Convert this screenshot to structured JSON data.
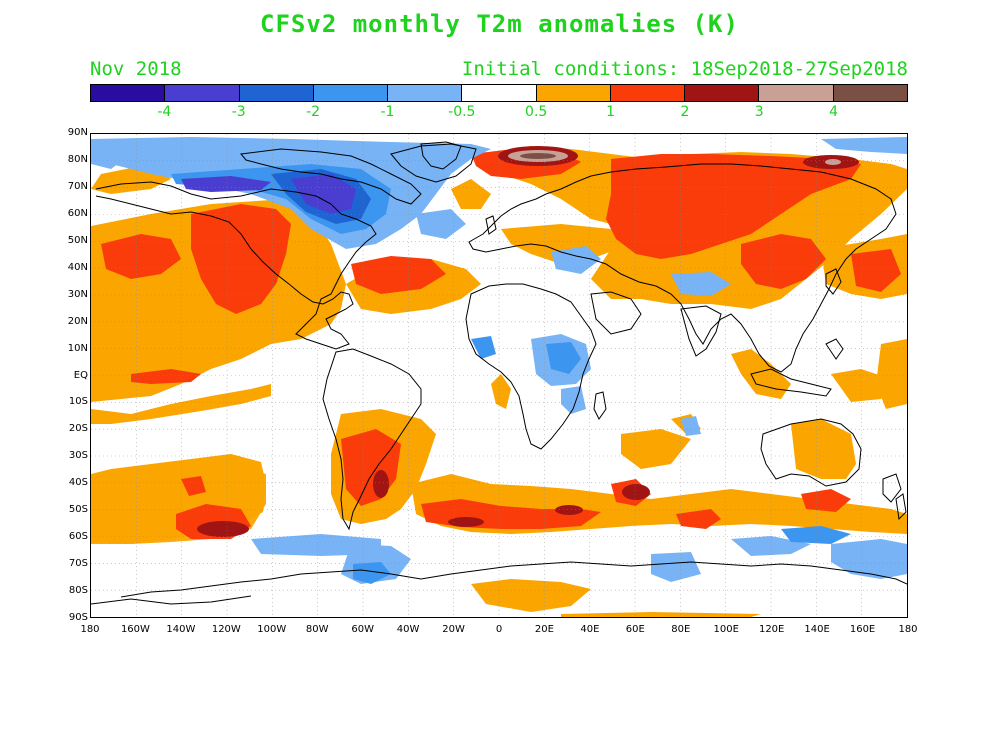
{
  "title": "CFSv2 monthly T2m anomalies (K)",
  "period": "Nov 2018",
  "initial_conditions": "Initial conditions: 18Sep2018-27Sep2018",
  "colors": {
    "title_green": "#1ed21e",
    "blue_4": "#2a0ca0",
    "blue_3": "#4a3ed0",
    "blue_2": "#1e64d2",
    "blue_1": "#3c96f0",
    "blue_05": "#78b4f5",
    "white": "#ffffff",
    "orange_05": "#fba500",
    "red_1": "#fa3c0a",
    "red_2": "#c80000",
    "darkred_3": "#a01414",
    "tan_4": "#c8a096",
    "brown_4": "#7a5044"
  },
  "colorbar": {
    "colors": [
      "#2a0ca0",
      "#4a3ed0",
      "#1e64d2",
      "#3c96f0",
      "#78b4f5",
      "#ffffff",
      "#fba500",
      "#fa3c0a",
      "#a01414",
      "#c8a096",
      "#7a5044"
    ],
    "labels": [
      "-4",
      "-3",
      "-2",
      "-1",
      "-0.5",
      "0.5",
      "1",
      "2",
      "3",
      "4"
    ]
  },
  "lat_labels": [
    "90N",
    "80N",
    "70N",
    "60N",
    "50N",
    "40N",
    "30N",
    "20N",
    "10N",
    "EQ",
    "10S",
    "20S",
    "30S",
    "40S",
    "50S",
    "60S",
    "70S",
    "80S",
    "90S"
  ],
  "lon_labels": [
    "180",
    "160W",
    "140W",
    "120W",
    "100W",
    "80W",
    "60W",
    "40W",
    "20W",
    "0",
    "20E",
    "40E",
    "60E",
    "80E",
    "100E",
    "120E",
    "140E",
    "160E",
    "180"
  ]
}
